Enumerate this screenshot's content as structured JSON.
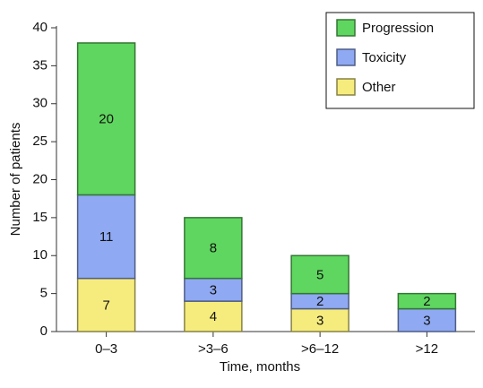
{
  "chart_data": {
    "type": "stacked-bar",
    "x_label": "Time, months",
    "y_label": "Number of patients",
    "categories": [
      "0–3",
      ">3–6",
      ">6–12",
      ">12"
    ],
    "series": [
      {
        "name": "Progression",
        "color": "#5fd65f",
        "values": [
          20,
          8,
          5,
          2
        ]
      },
      {
        "name": "Toxicity",
        "color": "#8fa9f2",
        "values": [
          11,
          3,
          2,
          3
        ]
      },
      {
        "name": "Other",
        "color": "#f6ec7e",
        "values": [
          7,
          4,
          3,
          null
        ]
      }
    ],
    "ylim": [
      0,
      40
    ],
    "yticks": [
      0,
      5,
      10,
      15,
      20,
      25,
      30,
      35,
      40
    ],
    "legend": "upper right"
  }
}
